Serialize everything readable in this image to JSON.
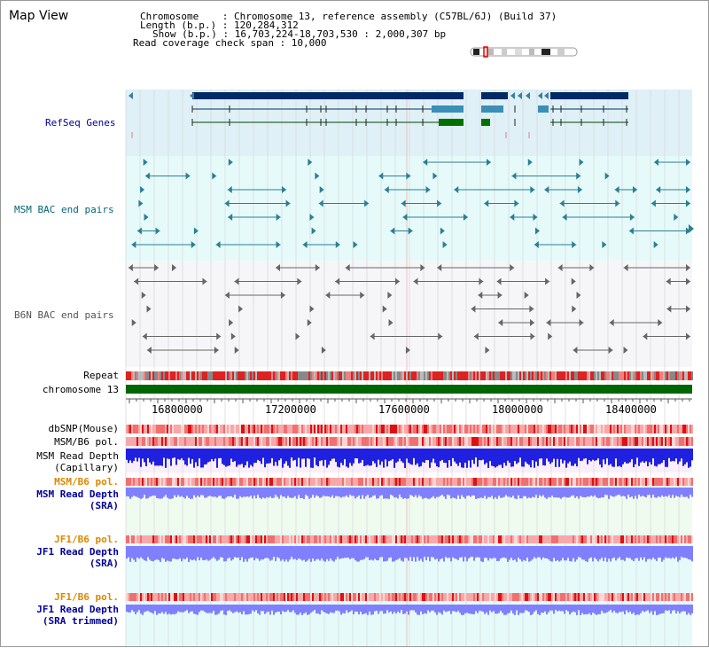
{
  "title": "Map View",
  "info": {
    "chromosome": "Chromosome    : Chromosome 13, reference assembly (C57BL/6J) (Build 37)",
    "length": "Length (b.p.) : 120,284,312",
    "show": "Show (b.p.) : 16,703,224-18,703,530 : 2,000,307 bp",
    "span": "Read coverage check span : 10,000"
  },
  "tracks": {
    "refseq": "RefSeq Genes",
    "msm_bac": "MSM BAC end pairs",
    "b6n_bac": "B6N BAC end pairs",
    "repeat": "Repeat",
    "chromosome": "chromosome 13",
    "dbsnp": "dbSNP(Mouse)",
    "msm_b6_pol_1": "MSM/B6 pol.",
    "msm_depth_cap_1": "MSM Read Depth",
    "msm_depth_cap_2": "(Capillary)",
    "msm_b6_pol_2": "MSM/B6 pol.",
    "msm_depth_sra_1": "MSM Read Depth",
    "msm_depth_sra_2": "(SRA)",
    "jf1_b6_pol_1": "JF1/B6 pol.",
    "jf1_depth_sra_1": "JF1 Read Depth",
    "jf1_depth_sra_2": "(SRA)",
    "jf1_b6_pol_2": "JF1/B6 pol.",
    "jf1_depth_trim_1": "JF1 Read Depth",
    "jf1_depth_trim_2": "(SRA trimmed)"
  },
  "axis": {
    "ticks": [
      "16800000",
      "17200000",
      "17600000",
      "18000000",
      "18400000"
    ]
  },
  "colors": {
    "refseq_label": "#000099",
    "msm_label": "#006677",
    "b6n_label": "#555555",
    "orange_label": "#dd8800",
    "blue_label": "#000099",
    "refseq_bg": "#dff0f7",
    "msm_bg": "#e6fafa",
    "b6n_bg": "#f6f6f8",
    "depth_cap": "#2020e0",
    "depth_sra": "#8080ff",
    "pol": "#ee5555",
    "chrom": "#006600"
  }
}
